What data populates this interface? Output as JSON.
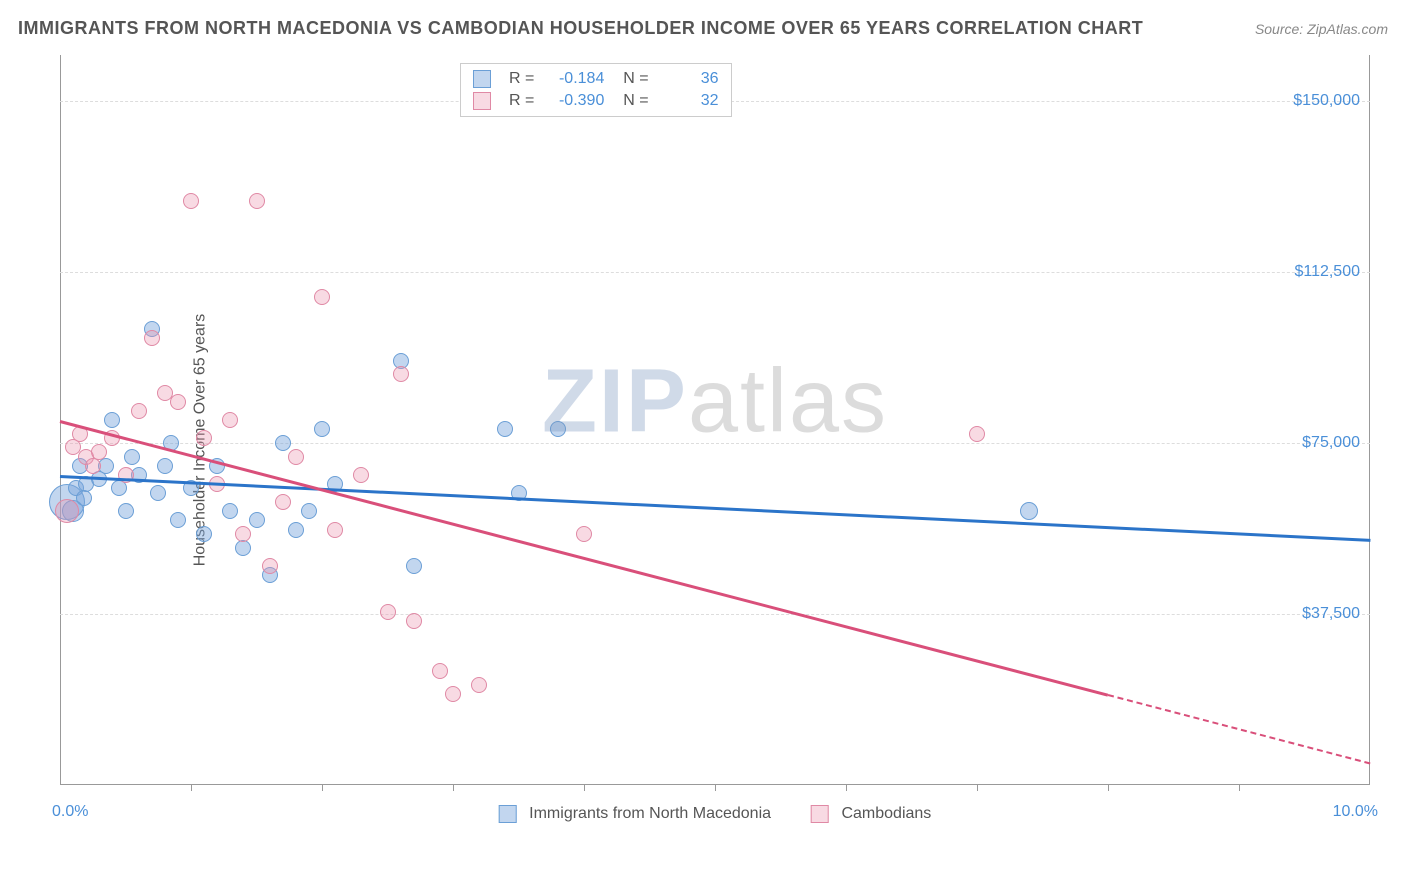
{
  "title": "IMMIGRANTS FROM NORTH MACEDONIA VS CAMBODIAN HOUSEHOLDER INCOME OVER 65 YEARS CORRELATION CHART",
  "source": "Source: ZipAtlas.com",
  "ylabel": "Householder Income Over 65 years",
  "watermark_a": "ZIP",
  "watermark_b": "atlas",
  "chart": {
    "type": "scatter",
    "xlim": [
      0,
      10
    ],
    "ylim": [
      0,
      160000
    ],
    "xmin_label": "0.0%",
    "xmax_label": "10.0%",
    "yticks": [
      {
        "v": 37500,
        "label": "$37,500"
      },
      {
        "v": 75000,
        "label": "$75,000"
      },
      {
        "v": 112500,
        "label": "$112,500"
      },
      {
        "v": 150000,
        "label": "$150,000"
      }
    ],
    "xtick_positions": [
      1,
      2,
      3,
      4,
      5,
      6,
      7,
      8,
      9
    ],
    "series": [
      {
        "name": "Immigrants from North Macedonia",
        "fill": "rgba(120,165,220,0.45)",
        "stroke": "#6b9fd6",
        "line_color": "#2b74c9",
        "r_value": "-0.184",
        "n_value": "36",
        "trend": {
          "x1": 0,
          "y1": 68000,
          "x2": 10,
          "y2": 54000
        },
        "points": [
          {
            "x": 0.05,
            "y": 62000,
            "r": 18
          },
          {
            "x": 0.1,
            "y": 60000,
            "r": 11
          },
          {
            "x": 0.12,
            "y": 65000,
            "r": 8
          },
          {
            "x": 0.15,
            "y": 70000,
            "r": 8
          },
          {
            "x": 0.2,
            "y": 66000,
            "r": 8
          },
          {
            "x": 0.18,
            "y": 63000,
            "r": 8
          },
          {
            "x": 0.3,
            "y": 67000,
            "r": 8
          },
          {
            "x": 0.35,
            "y": 70000,
            "r": 8
          },
          {
            "x": 0.4,
            "y": 80000,
            "r": 8
          },
          {
            "x": 0.45,
            "y": 65000,
            "r": 8
          },
          {
            "x": 0.5,
            "y": 60000,
            "r": 8
          },
          {
            "x": 0.55,
            "y": 72000,
            "r": 8
          },
          {
            "x": 0.6,
            "y": 68000,
            "r": 8
          },
          {
            "x": 0.7,
            "y": 100000,
            "r": 8
          },
          {
            "x": 0.75,
            "y": 64000,
            "r": 8
          },
          {
            "x": 0.8,
            "y": 70000,
            "r": 8
          },
          {
            "x": 0.85,
            "y": 75000,
            "r": 8
          },
          {
            "x": 0.9,
            "y": 58000,
            "r": 8
          },
          {
            "x": 1.0,
            "y": 65000,
            "r": 8
          },
          {
            "x": 1.1,
            "y": 55000,
            "r": 8
          },
          {
            "x": 1.2,
            "y": 70000,
            "r": 8
          },
          {
            "x": 1.3,
            "y": 60000,
            "r": 8
          },
          {
            "x": 1.4,
            "y": 52000,
            "r": 8
          },
          {
            "x": 1.5,
            "y": 58000,
            "r": 8
          },
          {
            "x": 1.6,
            "y": 46000,
            "r": 8
          },
          {
            "x": 1.7,
            "y": 75000,
            "r": 8
          },
          {
            "x": 1.8,
            "y": 56000,
            "r": 8
          },
          {
            "x": 1.9,
            "y": 60000,
            "r": 8
          },
          {
            "x": 2.0,
            "y": 78000,
            "r": 8
          },
          {
            "x": 2.1,
            "y": 66000,
            "r": 8
          },
          {
            "x": 2.6,
            "y": 93000,
            "r": 8
          },
          {
            "x": 2.7,
            "y": 48000,
            "r": 8
          },
          {
            "x": 3.4,
            "y": 78000,
            "r": 8
          },
          {
            "x": 3.5,
            "y": 64000,
            "r": 8
          },
          {
            "x": 3.8,
            "y": 78000,
            "r": 8
          },
          {
            "x": 7.4,
            "y": 60000,
            "r": 9
          }
        ]
      },
      {
        "name": "Cambodians",
        "fill": "rgba(235,150,175,0.35)",
        "stroke": "#e089a5",
        "line_color": "#d94f7a",
        "r_value": "-0.390",
        "n_value": "32",
        "trend": {
          "x1": 0,
          "y1": 80000,
          "x2": 8,
          "y2": 20000
        },
        "trend_dash": {
          "x1": 8,
          "y1": 20000,
          "x2": 10,
          "y2": 5000
        },
        "points": [
          {
            "x": 0.05,
            "y": 60000,
            "r": 12
          },
          {
            "x": 0.1,
            "y": 74000,
            "r": 8
          },
          {
            "x": 0.15,
            "y": 77000,
            "r": 8
          },
          {
            "x": 0.2,
            "y": 72000,
            "r": 8
          },
          {
            "x": 0.25,
            "y": 70000,
            "r": 8
          },
          {
            "x": 0.3,
            "y": 73000,
            "r": 8
          },
          {
            "x": 0.4,
            "y": 76000,
            "r": 8
          },
          {
            "x": 0.5,
            "y": 68000,
            "r": 8
          },
          {
            "x": 0.6,
            "y": 82000,
            "r": 8
          },
          {
            "x": 0.7,
            "y": 98000,
            "r": 8
          },
          {
            "x": 0.8,
            "y": 86000,
            "r": 8
          },
          {
            "x": 0.9,
            "y": 84000,
            "r": 8
          },
          {
            "x": 1.0,
            "y": 128000,
            "r": 8
          },
          {
            "x": 1.1,
            "y": 76000,
            "r": 8
          },
          {
            "x": 1.2,
            "y": 66000,
            "r": 8
          },
          {
            "x": 1.3,
            "y": 80000,
            "r": 8
          },
          {
            "x": 1.4,
            "y": 55000,
            "r": 8
          },
          {
            "x": 1.5,
            "y": 128000,
            "r": 8
          },
          {
            "x": 1.6,
            "y": 48000,
            "r": 8
          },
          {
            "x": 1.7,
            "y": 62000,
            "r": 8
          },
          {
            "x": 1.8,
            "y": 72000,
            "r": 8
          },
          {
            "x": 2.0,
            "y": 107000,
            "r": 8
          },
          {
            "x": 2.1,
            "y": 56000,
            "r": 8
          },
          {
            "x": 2.3,
            "y": 68000,
            "r": 8
          },
          {
            "x": 2.5,
            "y": 38000,
            "r": 8
          },
          {
            "x": 2.6,
            "y": 90000,
            "r": 8
          },
          {
            "x": 2.7,
            "y": 36000,
            "r": 8
          },
          {
            "x": 2.9,
            "y": 25000,
            "r": 8
          },
          {
            "x": 3.0,
            "y": 20000,
            "r": 8
          },
          {
            "x": 3.2,
            "y": 22000,
            "r": 8
          },
          {
            "x": 4.0,
            "y": 55000,
            "r": 8
          },
          {
            "x": 7.0,
            "y": 77000,
            "r": 8
          }
        ]
      }
    ]
  }
}
